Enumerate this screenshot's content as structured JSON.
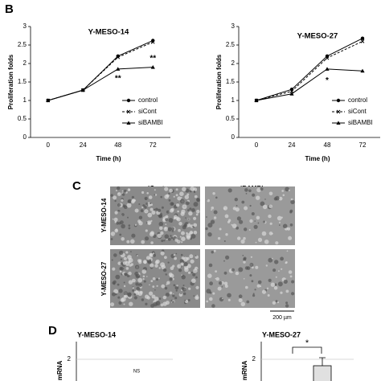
{
  "figure": {
    "panel_b": "B",
    "panel_c": "C",
    "panel_d": "D",
    "micrographs": {
      "columns": [
        "siCont",
        "siBAMBI"
      ],
      "rows": [
        "Y-MESO-14",
        "Y-MESO-27"
      ],
      "scale_bar": "200 µm"
    }
  },
  "chart_data": [
    {
      "type": "line",
      "title": "Y-MESO-14",
      "xlabel": "Time (h)",
      "ylabel": "Proliferation folds",
      "categories": [
        "0",
        "24",
        "48",
        "72"
      ],
      "ylim": [
        0,
        3
      ],
      "yticks": [
        0,
        0.5,
        1,
        1.5,
        2,
        2.5,
        3
      ],
      "legend": "lower right",
      "series": [
        {
          "name": "control",
          "color": "#000000",
          "marker": "circle",
          "dashed": false,
          "values": [
            1,
            1.28,
            2.2,
            2.62
          ]
        },
        {
          "name": "siCont",
          "color": "#000000",
          "marker": "x",
          "dashed": true,
          "values": [
            1,
            1.28,
            2.17,
            2.58
          ]
        },
        {
          "name": "siBAMBI",
          "color": "#000000",
          "marker": "triangle",
          "dashed": false,
          "values": [
            1,
            1.28,
            1.85,
            1.9
          ]
        }
      ],
      "annotations": [
        {
          "text": "**",
          "x": 2,
          "y": 1.59
        },
        {
          "text": "**",
          "x": 3,
          "y": 2.13
        }
      ]
    },
    {
      "type": "line",
      "title": "Y-MESO-27",
      "xlabel": "Time (h)",
      "ylabel": "Proliferation folds",
      "categories": [
        "0",
        "24",
        "48",
        "72"
      ],
      "ylim": [
        0,
        3
      ],
      "yticks": [
        0,
        0.5,
        1,
        1.5,
        2,
        2.5,
        3
      ],
      "legend": "lower right",
      "series": [
        {
          "name": "control",
          "color": "#000000",
          "marker": "circle",
          "dashed": false,
          "values": [
            1,
            1.3,
            2.2,
            2.68
          ]
        },
        {
          "name": "siCont",
          "color": "#000000",
          "marker": "x",
          "dashed": true,
          "values": [
            1,
            1.25,
            2.15,
            2.6
          ]
        },
        {
          "name": "siBAMBI",
          "color": "#000000",
          "marker": "triangle",
          "dashed": false,
          "values": [
            1,
            1.18,
            1.85,
            1.8
          ]
        }
      ],
      "annotations": [
        {
          "text": "*",
          "x": 2,
          "y": 1.54
        }
      ]
    },
    {
      "type": "bar",
      "title": "Y-MESO-14",
      "ylabel": "TGF mRNA",
      "yticks": [
        2
      ],
      "annotations": [
        {
          "text": "NS"
        }
      ]
    },
    {
      "type": "bar",
      "title": "Y-MESO-27",
      "ylabel": "TGF mRNA",
      "yticks": [
        2
      ],
      "annotations": [
        {
          "text": "*"
        }
      ]
    }
  ]
}
